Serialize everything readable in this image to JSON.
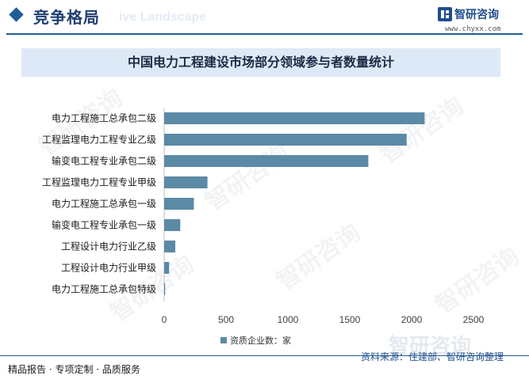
{
  "header": {
    "title": "竞争格局",
    "ghost_text": "ive Landscape"
  },
  "brand": {
    "name": "智研咨询",
    "url": "www.chyxx.com"
  },
  "watermark_text": "智研咨询",
  "chart_data": {
    "type": "bar",
    "orientation": "horizontal",
    "title": "中国电力工程建设市场部分领域参与者数量统计",
    "categories": [
      "电力工程施工总承包二级",
      "工程监理电力工程专业乙级",
      "输变电工程专业承包二级",
      "工程监理电力工程专业甲级",
      "电力工程施工总承包一级",
      "输变电工程专业承包一级",
      "工程设计电力行业乙级",
      "工程设计电力行业甲级",
      "电力工程施工总承包特级"
    ],
    "series": [
      {
        "name": "资质企业数：家",
        "values": [
          2105,
          1960,
          1650,
          350,
          240,
          130,
          90,
          40,
          8
        ],
        "color": "#5b8aa6"
      }
    ],
    "xlim": [
      0,
      2500
    ],
    "xticks": [
      0,
      500,
      1000,
      1500,
      2000,
      2500
    ],
    "grid": false,
    "legend_position": "bottom"
  },
  "footer": {
    "left": "精品报告 · 专项定制 · 品质服务",
    "source": "资料来源：住建部、智研咨询整理",
    "source_ghost": "智研咨询"
  }
}
